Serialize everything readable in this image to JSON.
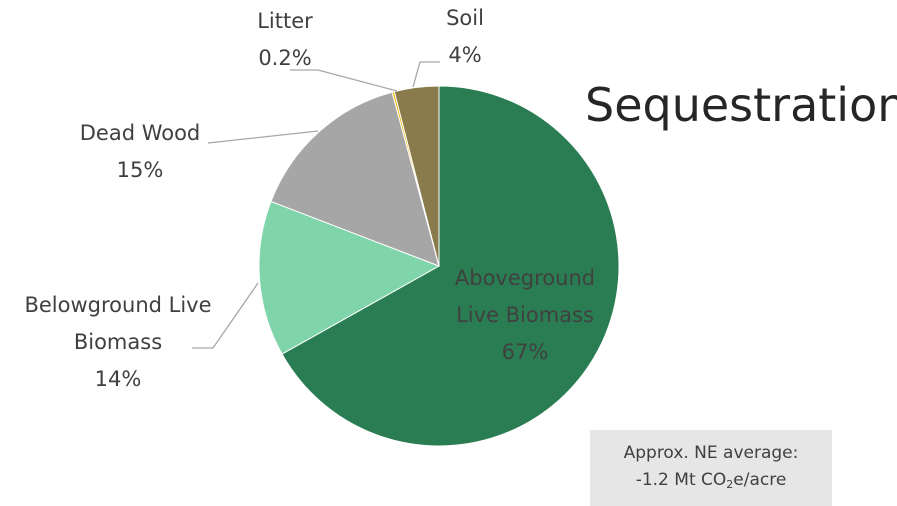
{
  "chart_data": {
    "type": "pie",
    "title": "Sequestration",
    "categories": [
      "Aboveground Live Biomass",
      "Belowground Live Biomass",
      "Dead Wood",
      "Litter",
      "Soil"
    ],
    "values": [
      67,
      14,
      15,
      0.2,
      4
    ],
    "value_labels": [
      "67%",
      "14%",
      "15%",
      "0.2%",
      "4%"
    ],
    "colors": [
      "#2a7d52",
      "#7fd4aa",
      "#a6a6a6",
      "#f2b705",
      "#8a7b4d"
    ],
    "annotation": {
      "line1": "Approx. NE average:",
      "line2": [
        "-1.2 Mt CO",
        "2",
        "e/acre"
      ]
    }
  }
}
